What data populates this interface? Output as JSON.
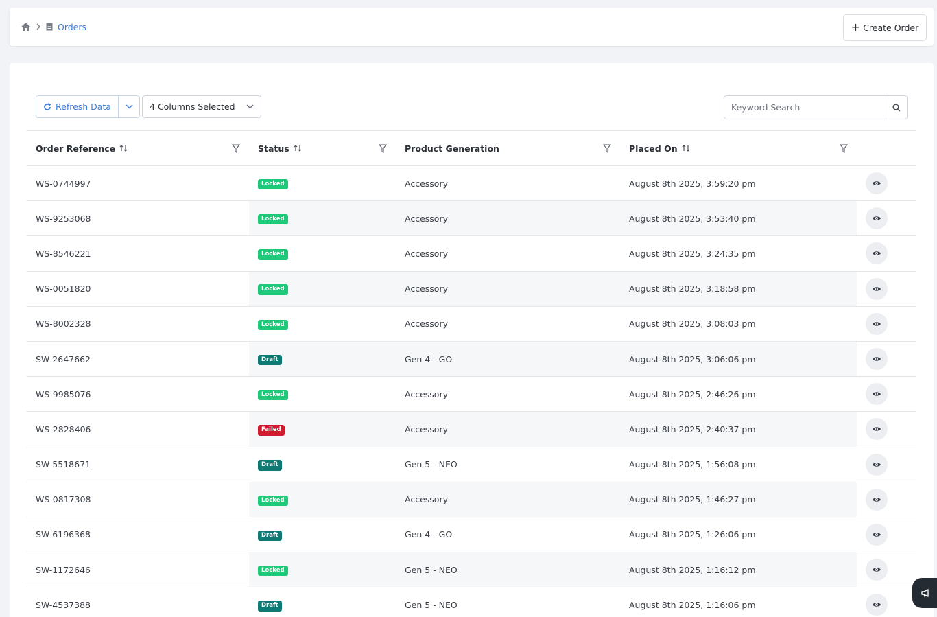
{
  "breadcrumb": {
    "home_icon": "home-icon",
    "separator_icon": "chevron-right-icon",
    "page_icon": "document-icon",
    "current": "Orders"
  },
  "header": {
    "create_label": "Create Order"
  },
  "toolbar": {
    "refresh_label": "Refresh Data",
    "columns_label": "4 Columns Selected",
    "search_placeholder": "Keyword Search"
  },
  "table": {
    "columns": [
      "Order Reference",
      "Status",
      "Product Generation",
      "Placed On"
    ],
    "rows": [
      {
        "ref": "WS-0744997",
        "status": "Locked",
        "gen": "Accessory",
        "placed": "August 8th 2025, 3:59:20 pm"
      },
      {
        "ref": "WS-9253068",
        "status": "Locked",
        "gen": "Accessory",
        "placed": "August 8th 2025, 3:53:40 pm"
      },
      {
        "ref": "WS-8546221",
        "status": "Locked",
        "gen": "Accessory",
        "placed": "August 8th 2025, 3:24:35 pm"
      },
      {
        "ref": "WS-0051820",
        "status": "Locked",
        "gen": "Accessory",
        "placed": "August 8th 2025, 3:18:58 pm"
      },
      {
        "ref": "WS-8002328",
        "status": "Locked",
        "gen": "Accessory",
        "placed": "August 8th 2025, 3:08:03 pm"
      },
      {
        "ref": "SW-2647662",
        "status": "Draft",
        "gen": "Gen 4 - GO",
        "placed": "August 8th 2025, 3:06:06 pm"
      },
      {
        "ref": "WS-9985076",
        "status": "Locked",
        "gen": "Accessory",
        "placed": "August 8th 2025, 2:46:26 pm"
      },
      {
        "ref": "WS-2828406",
        "status": "Failed",
        "gen": "Accessory",
        "placed": "August 8th 2025, 2:40:37 pm"
      },
      {
        "ref": "SW-5518671",
        "status": "Draft",
        "gen": "Gen 5 - NEO",
        "placed": "August 8th 2025, 1:56:08 pm"
      },
      {
        "ref": "WS-0817308",
        "status": "Locked",
        "gen": "Accessory",
        "placed": "August 8th 2025, 1:46:27 pm"
      },
      {
        "ref": "SW-6196368",
        "status": "Draft",
        "gen": "Gen 4 - GO",
        "placed": "August 8th 2025, 1:26:06 pm"
      },
      {
        "ref": "SW-1172646",
        "status": "Locked",
        "gen": "Gen 5 - NEO",
        "placed": "August 8th 2025, 1:16:12 pm"
      },
      {
        "ref": "SW-4537388",
        "status": "Draft",
        "gen": "Gen 5 - NEO",
        "placed": "August 8th 2025, 1:16:06 pm"
      }
    ]
  },
  "colors": {
    "accent": "#3f7ed6",
    "locked": "#1ec97a",
    "draft": "#0e7a73",
    "failed": "#cf1b2e"
  }
}
